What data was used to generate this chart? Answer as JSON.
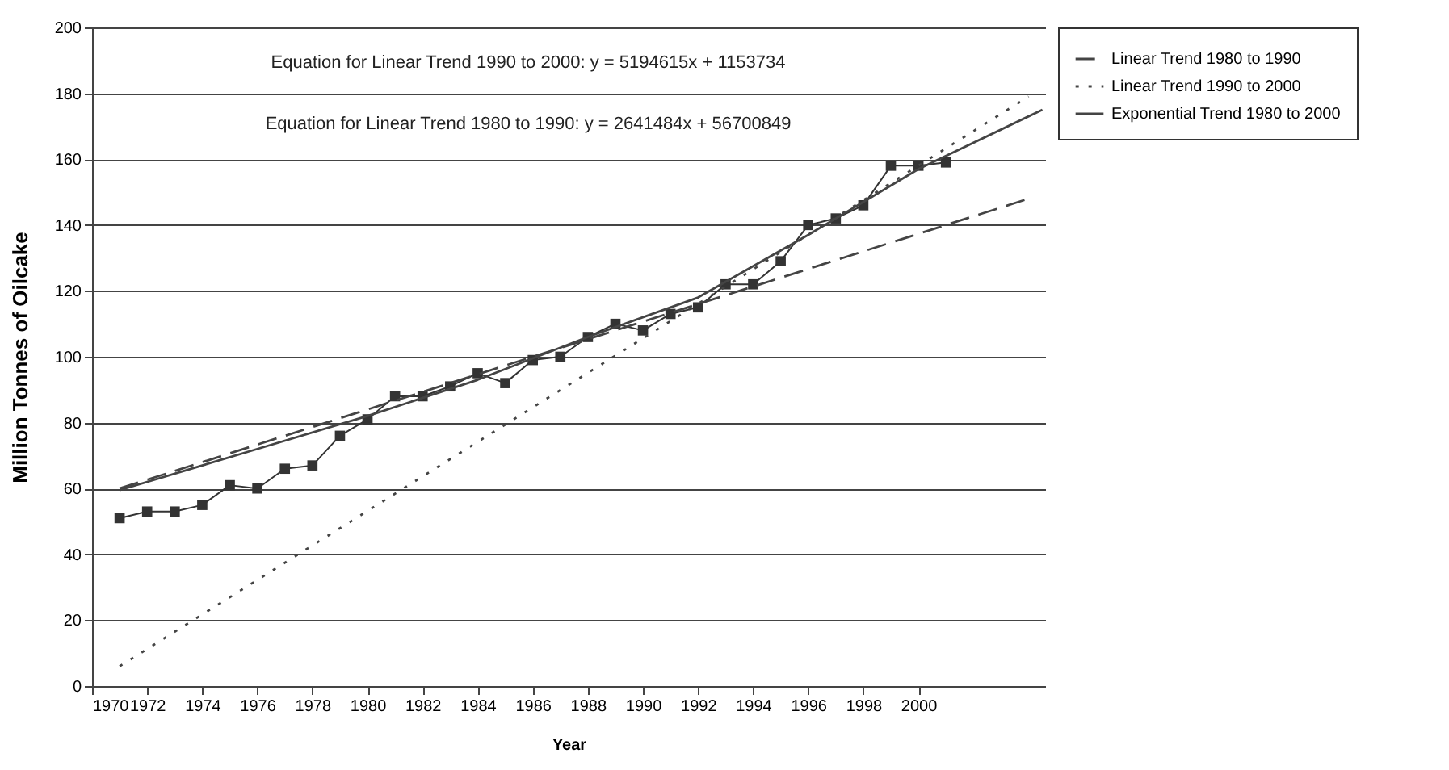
{
  "chart_data": {
    "type": "line",
    "xlabel": "Year",
    "ylabel": "Million Tonnes of Oilcake",
    "annotations": [
      "Equation for Linear Trend 1990 to 2000: y = 5194615x + 1153734",
      "Equation for Linear Trend 1980 to 1990: y = 2641484x + 56700849"
    ],
    "xlim": [
      1970,
      2004.6
    ],
    "xticks": [
      1970,
      1972,
      1974,
      1976,
      1978,
      1980,
      1982,
      1984,
      1986,
      1988,
      1990,
      1992,
      1994,
      1996,
      1998,
      2000
    ],
    "ylim": [
      0,
      200
    ],
    "yticks": [
      0,
      20,
      40,
      60,
      80,
      100,
      120,
      140,
      160,
      180,
      200
    ],
    "grid": "y",
    "legend": "right",
    "series": [
      {
        "color": "#333333",
        "marker": "square",
        "line_style": "solid",
        "x": [
          1971,
          1972,
          1973,
          1974,
          1975,
          1976,
          1977,
          1978,
          1979,
          1980,
          1981,
          1982,
          1983,
          1984,
          1985,
          1986,
          1987,
          1988,
          1989,
          1990,
          1991,
          1992,
          1993,
          1994,
          1995,
          1996,
          1997,
          1998,
          1999,
          2000,
          2001
        ],
        "values": [
          51,
          53,
          53,
          55,
          61,
          60,
          66,
          67,
          76,
          81,
          88,
          88,
          91,
          95,
          92,
          99,
          100,
          106,
          110,
          108,
          113,
          115,
          122,
          122,
          129,
          140,
          142,
          146,
          158,
          158,
          159
        ]
      },
      {
        "name": "Linear Trend 1980 to 1990",
        "color": "#444444",
        "marker": "none",
        "line_style": "dashed",
        "x": [
          1971,
          2004
        ],
        "values": [
          60,
          148
        ]
      },
      {
        "name": "Linear Trend 1990 to 2000",
        "color": "#444444",
        "marker": "none",
        "line_style": "dotted",
        "x": [
          1971,
          2004
        ],
        "values": [
          6,
          179
        ]
      },
      {
        "name": "Exponential Trend 1980 to 2000",
        "color": "#444444",
        "marker": "none",
        "line_style": "solid",
        "x": [
          1971,
          1976,
          1980,
          1984,
          1988,
          1992,
          1996,
          2000,
          2004.5
        ],
        "values": [
          59.5,
          72,
          82,
          93,
          106,
          118,
          137,
          157,
          175
        ]
      }
    ]
  }
}
